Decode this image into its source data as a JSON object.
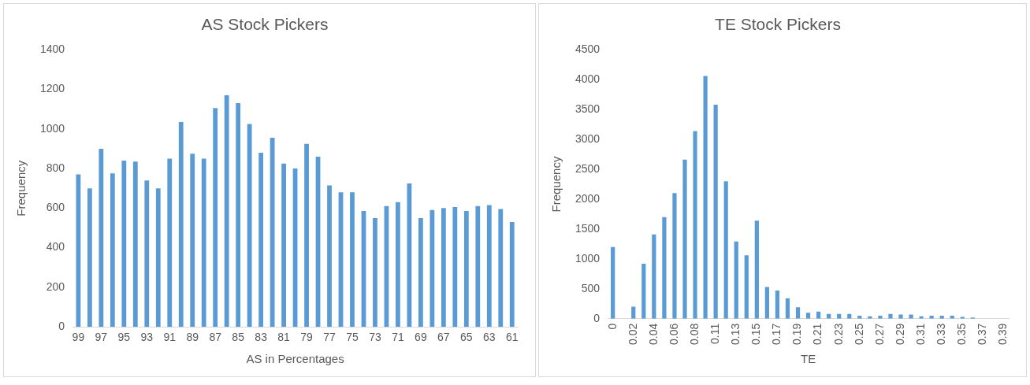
{
  "chart_data": [
    {
      "type": "bar",
      "title": "AS Stock Pickers",
      "xlabel": "AS in Percentages",
      "ylabel": "Frequency",
      "color": "#5b9bd5",
      "categories": [
        "99",
        null,
        "97",
        null,
        "95",
        null,
        "93",
        null,
        "91",
        null,
        "89",
        null,
        "87",
        null,
        "85",
        null,
        "83",
        null,
        "81",
        null,
        "79",
        null,
        "77",
        null,
        "75",
        null,
        "73",
        null,
        "71",
        null,
        "69",
        null,
        "67",
        null,
        "65",
        null,
        "63",
        null,
        "61"
      ],
      "values": [
        770,
        700,
        900,
        775,
        840,
        835,
        740,
        700,
        850,
        1035,
        875,
        850,
        1105,
        1170,
        1130,
        1025,
        880,
        955,
        825,
        800,
        925,
        860,
        715,
        680,
        680,
        585,
        550,
        610,
        630,
        725,
        550,
        590,
        600,
        605,
        585,
        610,
        615,
        595,
        530
      ],
      "ylim": [
        0,
        1400
      ],
      "yticks": [
        0,
        200,
        400,
        600,
        800,
        1000,
        1200,
        1400
      ]
    },
    {
      "type": "bar",
      "title": "TE Stock Pickers",
      "xlabel": "TE",
      "ylabel": "Frequency",
      "color": "#5b9bd5",
      "categories": [
        "0",
        null,
        "0.02",
        null,
        "0.04",
        null,
        "0.06",
        null,
        "0.08",
        null,
        "0.11",
        null,
        "0.13",
        null,
        "0.15",
        null,
        "0.17",
        null,
        "0.19",
        null,
        "0.21",
        null,
        "0.23",
        null,
        "0.25",
        null,
        "0.27",
        null,
        "0.29",
        null,
        "0.31",
        null,
        "0.33",
        null,
        "0.35",
        null,
        "0.37",
        null,
        "0.39"
      ],
      "values": [
        1200,
        0,
        200,
        920,
        1410,
        1700,
        2100,
        2660,
        3140,
        4060,
        3580,
        2300,
        1290,
        1060,
        1640,
        530,
        470,
        340,
        190,
        100,
        120,
        80,
        80,
        80,
        50,
        40,
        50,
        80,
        70,
        70,
        40,
        50,
        50,
        50,
        30,
        20,
        0,
        0,
        0
      ],
      "ylim": [
        0,
        4500
      ],
      "yticks": [
        0,
        500,
        1000,
        1500,
        2000,
        2500,
        3000,
        3500,
        4000,
        4500
      ]
    }
  ]
}
